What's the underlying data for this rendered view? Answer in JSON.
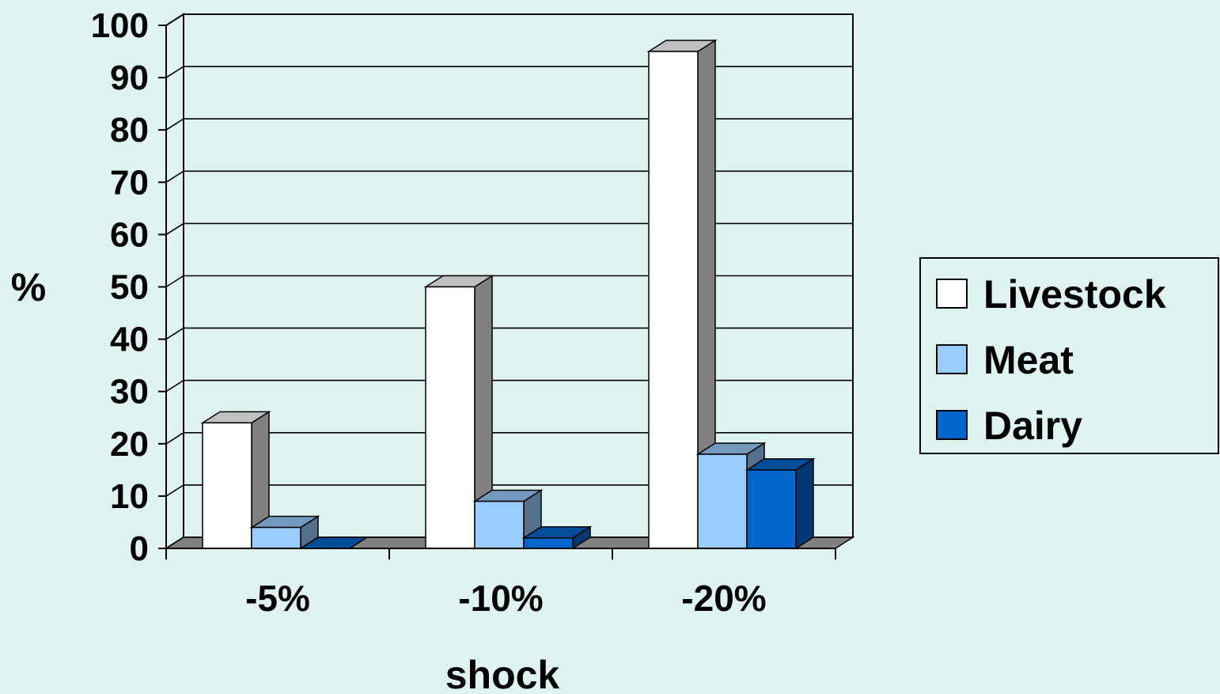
{
  "chart_data": {
    "type": "bar",
    "style": "3d-clustered-column",
    "categories": [
      "-5%",
      "-10%",
      "-20%"
    ],
    "series": [
      {
        "name": "Livestock",
        "values": [
          24,
          50,
          95
        ],
        "color": "#ffffff"
      },
      {
        "name": "Meat",
        "values": [
          4,
          9,
          18
        ],
        "color": "#99ccff"
      },
      {
        "name": "Dairy",
        "values": [
          0,
          2,
          15
        ],
        "color": "#0066cc"
      }
    ],
    "title": "",
    "xlabel": "shock",
    "ylabel": "%",
    "ylim": [
      0,
      100
    ],
    "yticks": [
      "0",
      "10",
      "20",
      "30",
      "40",
      "50",
      "60",
      "70",
      "80",
      "90",
      "100"
    ],
    "grid": true,
    "legend": "right"
  },
  "colors": {
    "background": "#dff4f1",
    "wall": "#dff4f1",
    "floor": "#808080"
  }
}
